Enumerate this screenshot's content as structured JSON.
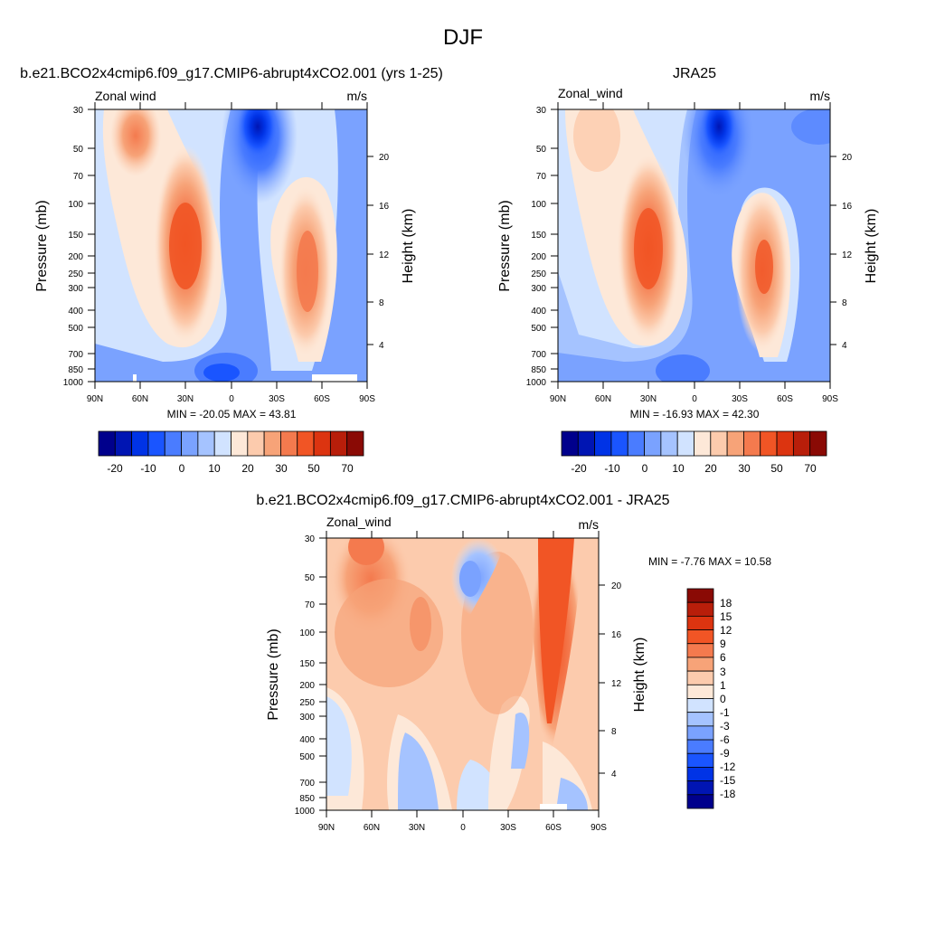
{
  "figure": {
    "title": "DJF"
  },
  "colors": {
    "wind_levels": [
      "#00008c",
      "#0015b3",
      "#0033e6",
      "#1a55ff",
      "#4a7cff",
      "#7aa2ff",
      "#a5c3ff",
      "#d1e3ff",
      "#fde8d8",
      "#fccbad",
      "#f7a378",
      "#f47a4e",
      "#f15525",
      "#dc3410",
      "#b81e0a",
      "#8a0a05"
    ],
    "diff_levels": [
      "#00008c",
      "#0015b3",
      "#0033e6",
      "#1a55ff",
      "#4a7cff",
      "#7aa2ff",
      "#a5c3ff",
      "#d1e3ff",
      "#fde8d8",
      "#fccbad",
      "#f7a378",
      "#f47a4e",
      "#f15525",
      "#dc3410",
      "#b81e0a",
      "#8a0a05"
    ]
  },
  "chart_data": [
    {
      "type": "heatmap",
      "title": "b.e21.BCO2x4cmip6.f09_g17.CMIP6-abrupt4xCO2.001 (yrs 1-25)",
      "left_label": "Zonal wind",
      "right_label": "m/s",
      "ylabel": "Pressure (mb)",
      "ylabel_right": "Height (km)",
      "x_ticks": [
        "90N",
        "60N",
        "30N",
        "0",
        "30S",
        "60S",
        "90S"
      ],
      "y_ticks": [
        "30",
        "50",
        "70",
        "100",
        "150",
        "200",
        "250",
        "300",
        "400",
        "500",
        "700",
        "850",
        "1000"
      ],
      "y2_ticks": [
        "20",
        "16",
        "12",
        "8",
        "4"
      ],
      "min_max_text": "MIN = -20.05  MAX = 43.81",
      "colorbar_labels": [
        "-20",
        "-10",
        "0",
        "10",
        "20",
        "30",
        "50",
        "70"
      ],
      "features": [
        {
          "lat": 30,
          "pressure": 170,
          "value": 43.81
        },
        {
          "lat": -50,
          "pressure": 230,
          "value": 30
        },
        {
          "lat": 65,
          "pressure": 35,
          "value": 22
        },
        {
          "lat": -15,
          "pressure": 35,
          "value": -20.05
        },
        {
          "lat": 20,
          "pressure": 900,
          "value": -10
        }
      ]
    },
    {
      "type": "heatmap",
      "title": "JRA25",
      "left_label": "Zonal_wind",
      "right_label": "m/s",
      "ylabel": "Pressure (mb)",
      "ylabel_right": "Height (km)",
      "x_ticks": [
        "90N",
        "60N",
        "30N",
        "0",
        "30S",
        "60S",
        "90S"
      ],
      "y_ticks": [
        "30",
        "50",
        "70",
        "100",
        "150",
        "200",
        "250",
        "300",
        "400",
        "500",
        "700",
        "850",
        "1000"
      ],
      "y2_ticks": [
        "20",
        "16",
        "12",
        "8",
        "4"
      ],
      "min_max_text": "MIN = -16.93  MAX = 42.30",
      "colorbar_labels": [
        "-20",
        "-10",
        "0",
        "10",
        "20",
        "30",
        "50",
        "70"
      ],
      "features": [
        {
          "lat": 30,
          "pressure": 180,
          "value": 42.3
        },
        {
          "lat": -47,
          "pressure": 230,
          "value": 35
        },
        {
          "lat": 65,
          "pressure": 35,
          "value": 12
        },
        {
          "lat": -15,
          "pressure": 35,
          "value": -16.93
        }
      ]
    },
    {
      "type": "heatmap",
      "title": "b.e21.BCO2x4cmip6.f09_g17.CMIP6-abrupt4xCO2.001 - JRA25",
      "left_label": "Zonal_wind",
      "right_label": "m/s",
      "ylabel": "Pressure (mb)",
      "ylabel_right": "Height (km)",
      "x_ticks": [
        "90N",
        "60N",
        "30N",
        "0",
        "30S",
        "60S",
        "90S"
      ],
      "y_ticks": [
        "30",
        "50",
        "70",
        "100",
        "150",
        "200",
        "250",
        "300",
        "400",
        "500",
        "700",
        "850",
        "1000"
      ],
      "y2_ticks": [
        "20",
        "16",
        "12",
        "8",
        "4"
      ],
      "min_max_text": "MIN =  -7.76  MAX =  10.58",
      "colorbar_labels": [
        "18",
        "15",
        "12",
        "9",
        "6",
        "3",
        "1",
        "0",
        "-1",
        "-3",
        "-6",
        "-9",
        "-12",
        "-15",
        "-18"
      ],
      "features": [
        {
          "lat": -58,
          "pressure": 100,
          "value": 10.58
        },
        {
          "lat": 65,
          "pressure": 40,
          "value": 6
        },
        {
          "lat": 0,
          "pressure": 50,
          "value": -7.76
        }
      ]
    }
  ]
}
